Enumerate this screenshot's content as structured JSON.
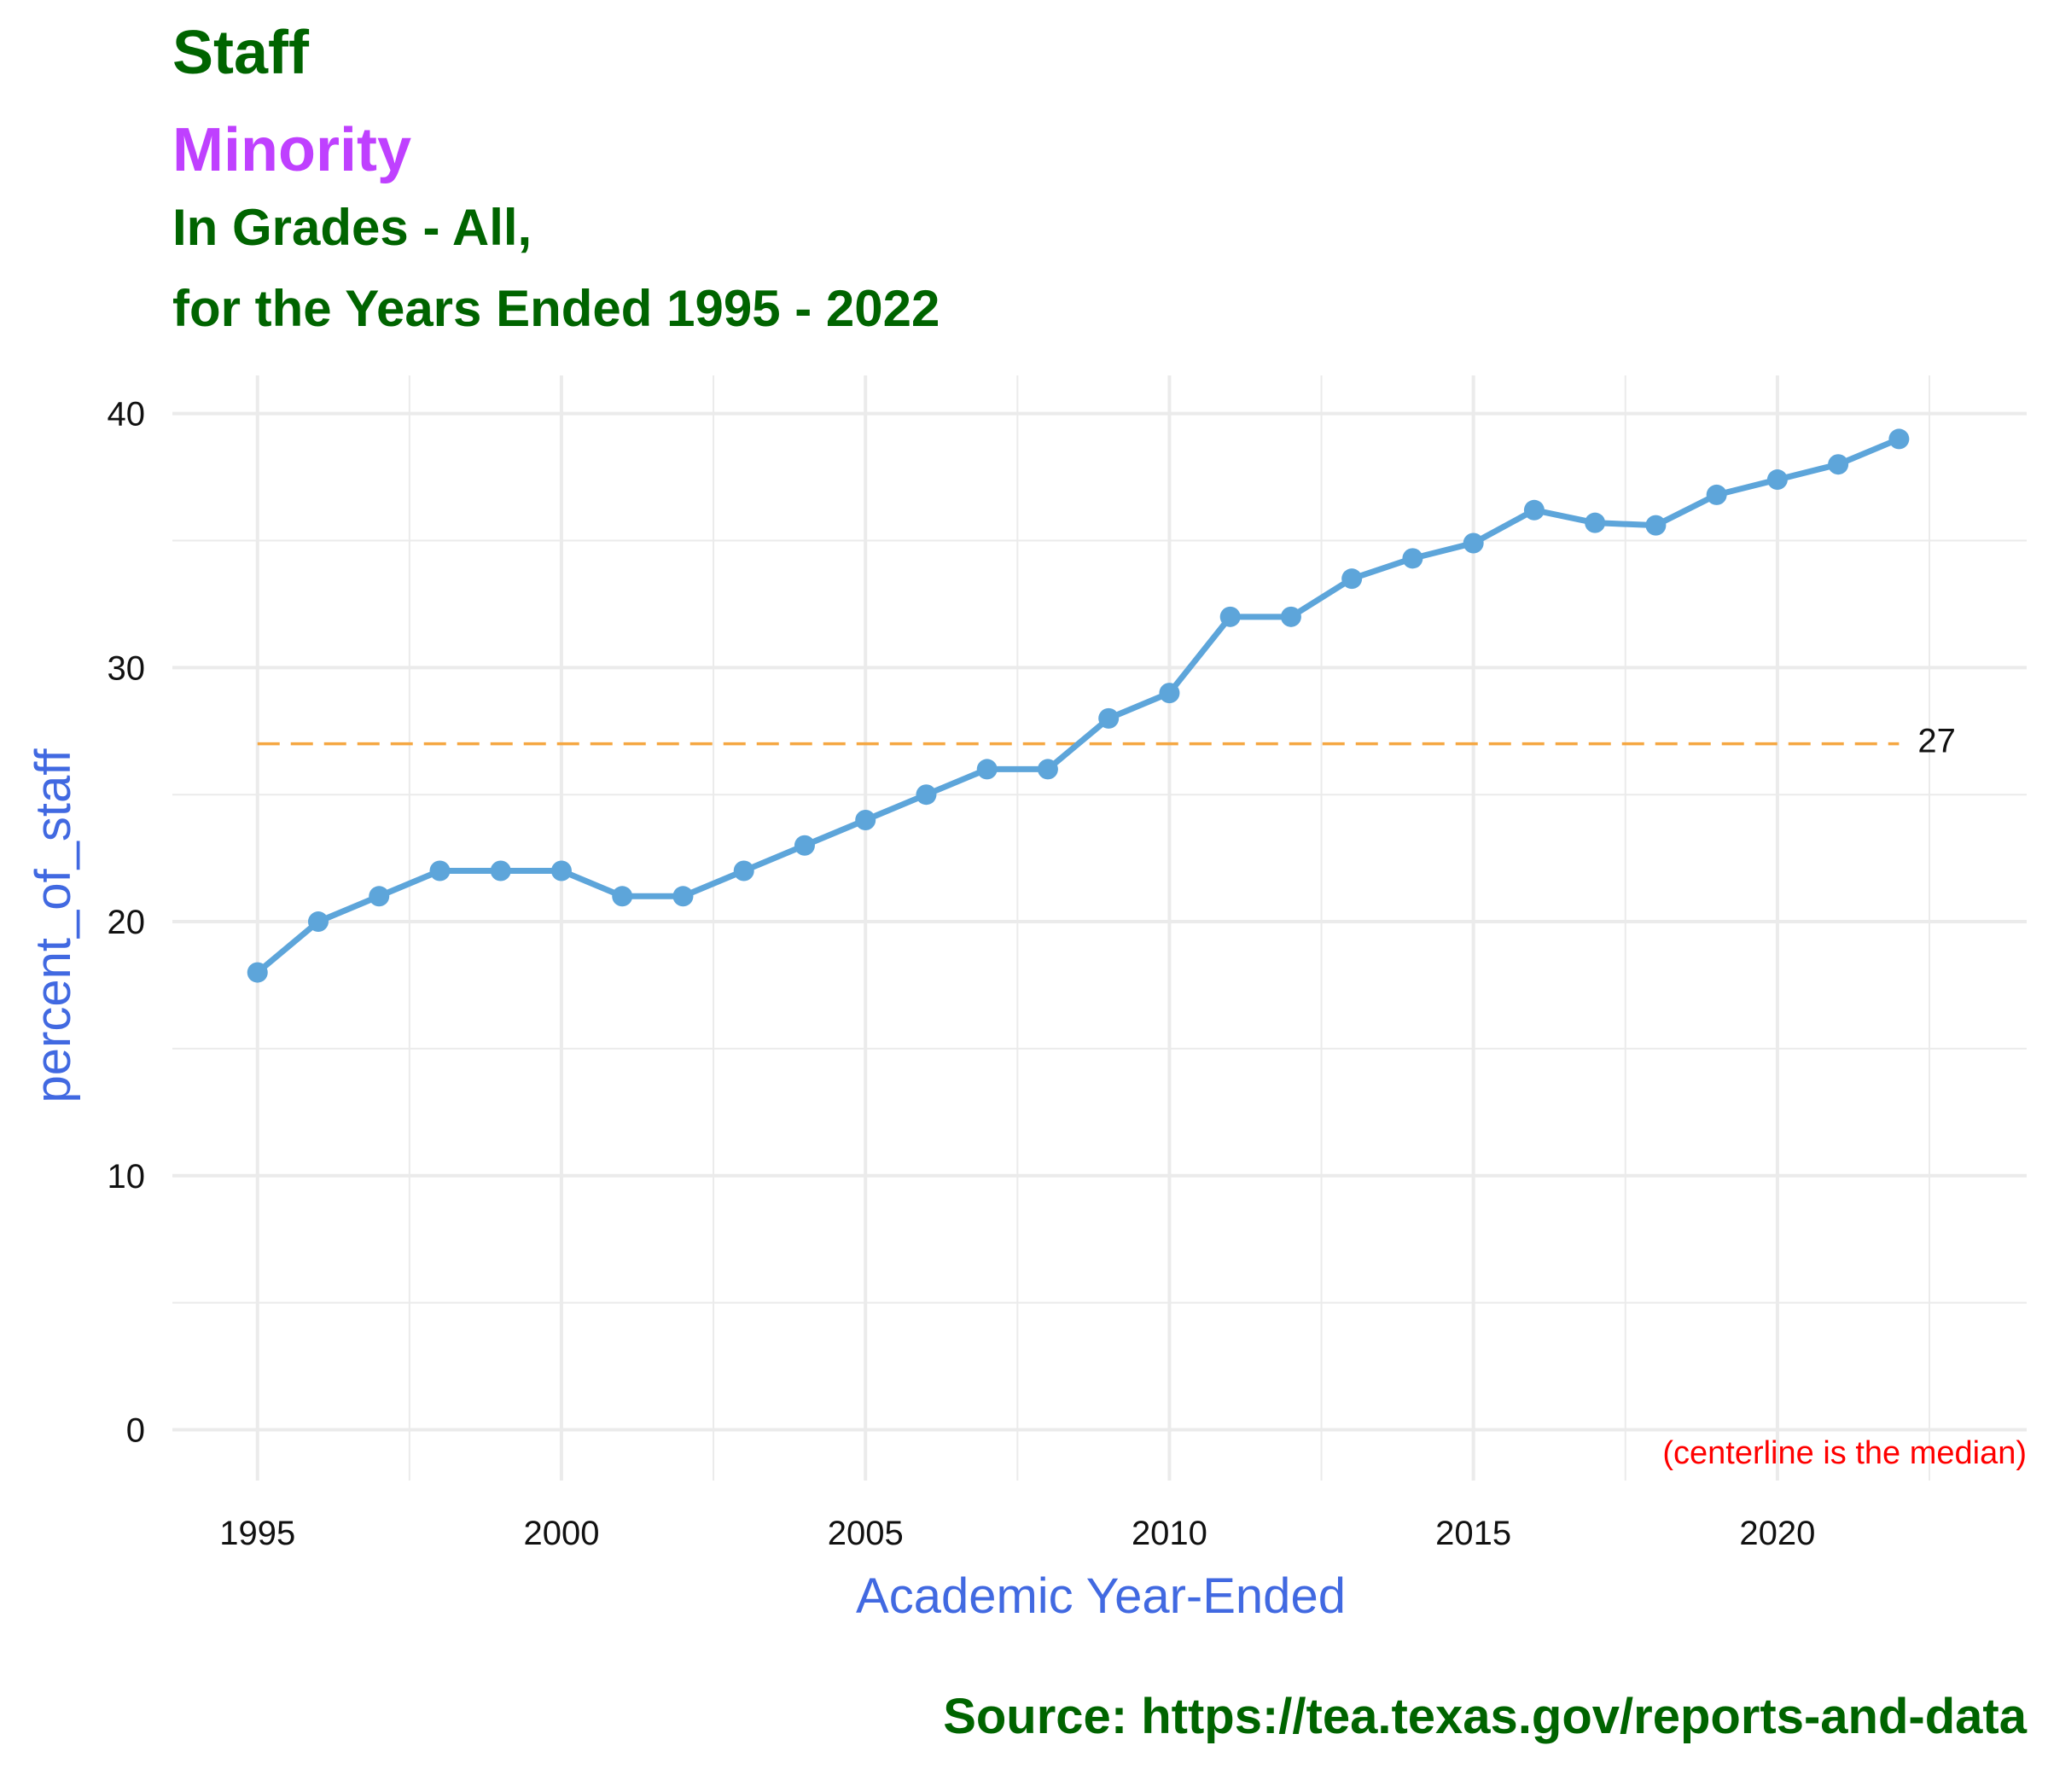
{
  "titles": {
    "line1": "Staff",
    "line2": "Minority",
    "line3": "In Grades - All,",
    "line4": "for the Years Ended 1995 - 2022"
  },
  "caption": "Source:  https://tea.texas.gov/reports-and-data",
  "colors": {
    "title": "#006400",
    "highlight": "#BF40FF",
    "axis_title": "#4169E1",
    "series": "#5DA5DA",
    "median_line": "#F5A742",
    "note": "#FF0000",
    "grid": "#EBEBEB"
  },
  "chart_data": {
    "type": "line",
    "xlabel": "Academic Year-Ended",
    "ylabel": "percent_of_staff",
    "xlim": [
      1993.6,
      2024.1
    ],
    "ylim": [
      -2,
      41.5
    ],
    "x_ticks": [
      1995,
      2000,
      2005,
      2010,
      2015,
      2020
    ],
    "y_ticks": [
      0,
      10,
      20,
      30,
      40
    ],
    "grid": true,
    "x": [
      1995,
      1996,
      1997,
      1998,
      1999,
      2000,
      2001,
      2002,
      2003,
      2004,
      2005,
      2006,
      2007,
      2008,
      2009,
      2010,
      2011,
      2012,
      2013,
      2014,
      2015,
      2016,
      2017,
      2018,
      2019,
      2020,
      2021,
      2022
    ],
    "series": [
      {
        "values": [
          18,
          20,
          21,
          22,
          22,
          22,
          21,
          21,
          22,
          23,
          24,
          25,
          26,
          26,
          28,
          29,
          32,
          32,
          33.5,
          34.3,
          34.9,
          36.2,
          35.7,
          35.6,
          36.8,
          37.4,
          38,
          39
        ]
      }
    ],
    "reference_line": {
      "value": 27,
      "label": "27",
      "x_range": [
        1995,
        2022
      ]
    },
    "annotation": "(centerline is the median)"
  }
}
